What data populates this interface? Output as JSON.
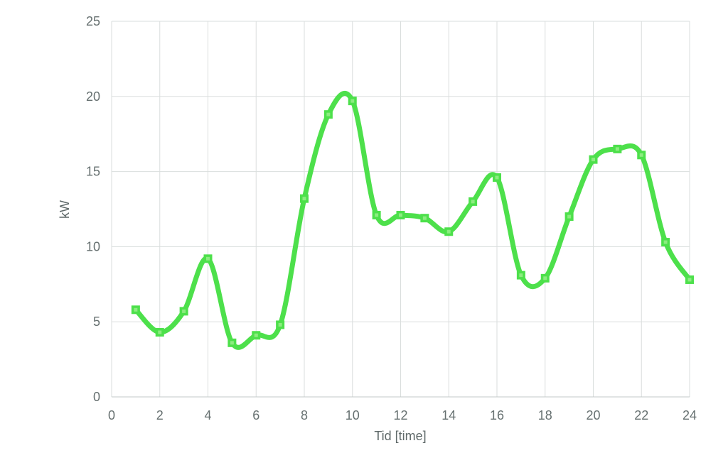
{
  "chart_data": {
    "type": "line",
    "title": "",
    "xlabel": "Tid [time]",
    "ylabel": "kW",
    "x": [
      1,
      2,
      3,
      4,
      5,
      6,
      7,
      8,
      9,
      10,
      11,
      12,
      13,
      14,
      15,
      16,
      17,
      18,
      19,
      20,
      21,
      22,
      23,
      24
    ],
    "series": [
      {
        "name": "kW",
        "values": [
          5.8,
          4.3,
          5.7,
          9.2,
          3.6,
          4.1,
          4.8,
          13.2,
          18.8,
          19.7,
          12.1,
          12.1,
          11.9,
          11.0,
          13.0,
          14.6,
          8.1,
          7.9,
          12.0,
          15.8,
          16.5,
          16.1,
          10.3,
          7.8
        ]
      }
    ],
    "xlim": [
      0,
      24
    ],
    "ylim": [
      0,
      25
    ],
    "x_ticks": [
      0,
      2,
      4,
      6,
      8,
      10,
      12,
      14,
      16,
      18,
      20,
      22,
      24
    ],
    "y_ticks": [
      0,
      5,
      10,
      15,
      20,
      25
    ],
    "grid": true,
    "legend": false,
    "smooth": true,
    "marker": "square",
    "line_color": "#4de04b",
    "marker_fill": "#8cec80",
    "gridline_color": "#dadedd",
    "axis_line_color": "#c3c9c8",
    "tick_label_color": "#667070",
    "axis_title_color": "#5f6969"
  }
}
